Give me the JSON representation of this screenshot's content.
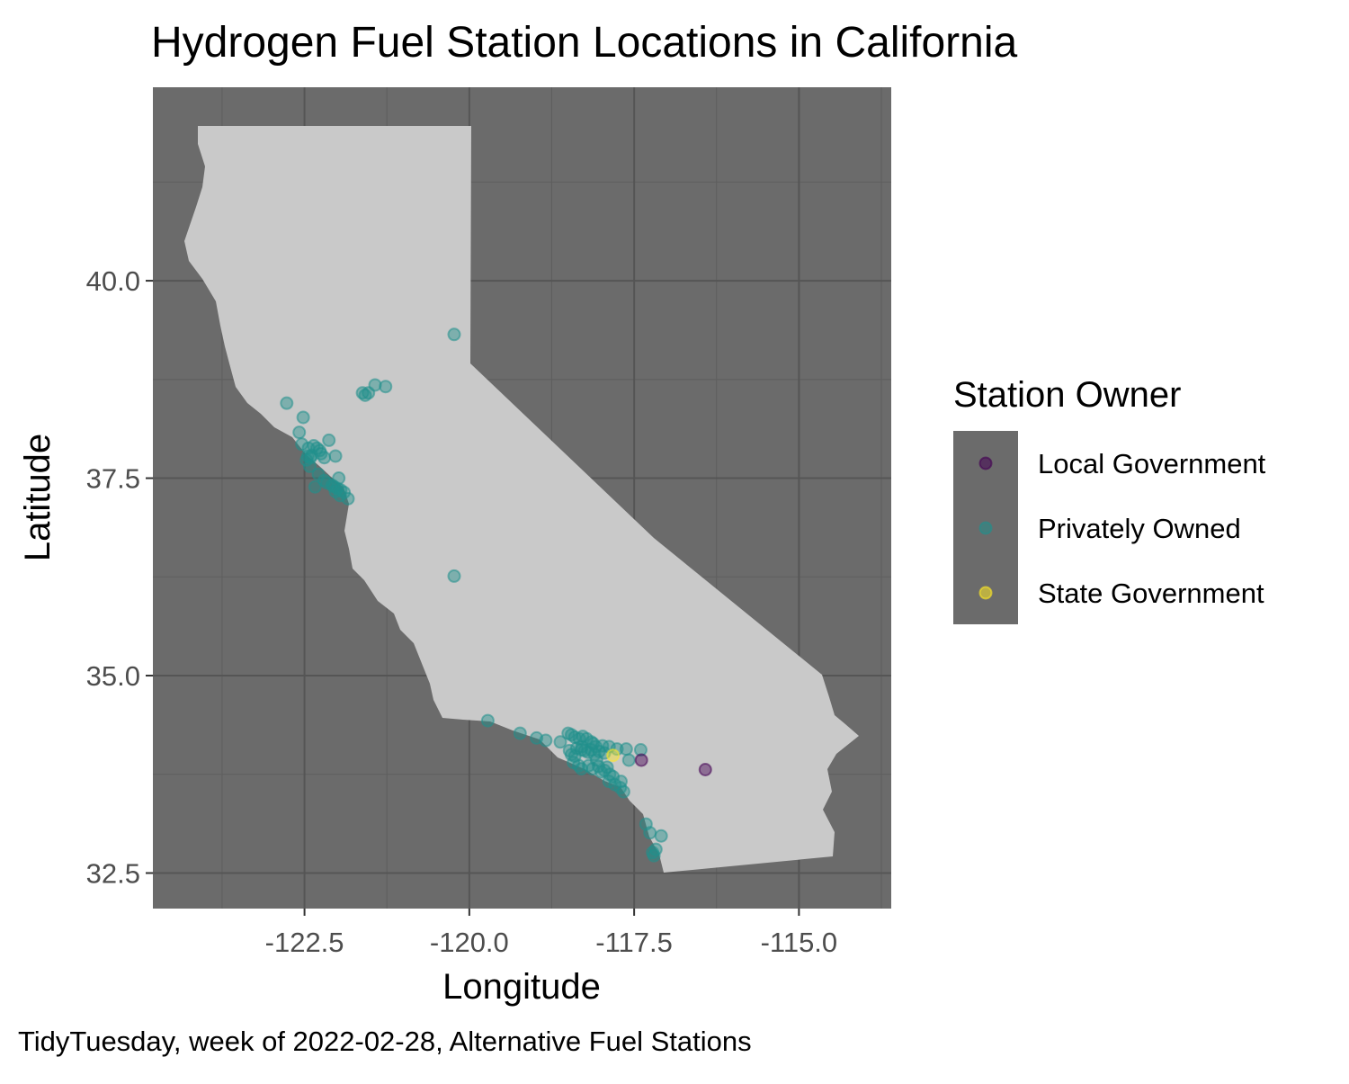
{
  "chart_data": {
    "type": "scatter",
    "title": "Hydrogen Fuel Station Locations in California",
    "xlabel": "Longitude",
    "ylabel": "Latitude",
    "caption": "TidyTuesday, week of 2022-02-28, Alternative Fuel Stations",
    "xlim": [
      -124.8,
      -113.6
    ],
    "ylim": [
      32.05,
      42.45
    ],
    "x_ticks": [
      -122.5,
      -120.0,
      -117.5,
      -115.0
    ],
    "x_tick_labels": [
      "-122.5",
      "-120.0",
      "-117.5",
      "-115.0"
    ],
    "y_ticks": [
      32.5,
      35.0,
      37.5,
      40.0
    ],
    "y_tick_labels": [
      "32.5",
      "35.0",
      "37.5",
      "40.0"
    ],
    "grid": true,
    "legend": {
      "title": "Station Owner",
      "placement": "right",
      "entries": [
        "Local Government",
        "Privately Owned",
        "State Government"
      ]
    },
    "colors": {
      "panel_background": "#6b6b6b",
      "grid_major": "#555555",
      "grid_minor": "#5e5e5e",
      "land_fill": "#c9c9c9",
      "Local Government": "#440154",
      "Privately Owned": "#21908c",
      "State Government": "#fde725"
    },
    "series": [
      {
        "name": "Privately Owned",
        "points": [
          [
            -120.23,
            39.32
          ],
          [
            -122.77,
            38.45
          ],
          [
            -121.27,
            38.66
          ],
          [
            -121.43,
            38.68
          ],
          [
            -121.53,
            38.58
          ],
          [
            -121.62,
            38.58
          ],
          [
            -121.58,
            38.55
          ],
          [
            -122.52,
            38.27
          ],
          [
            -122.58,
            38.08
          ],
          [
            -122.54,
            37.93
          ],
          [
            -122.44,
            37.88
          ],
          [
            -122.36,
            37.91
          ],
          [
            -122.31,
            37.88
          ],
          [
            -122.27,
            37.85
          ],
          [
            -122.45,
            37.78
          ],
          [
            -122.41,
            37.76
          ],
          [
            -122.39,
            37.79
          ],
          [
            -122.47,
            37.73
          ],
          [
            -122.25,
            37.81
          ],
          [
            -122.2,
            37.76
          ],
          [
            -122.13,
            37.98
          ],
          [
            -122.03,
            37.78
          ],
          [
            -122.42,
            37.65
          ],
          [
            -122.29,
            37.55
          ],
          [
            -122.34,
            37.39
          ],
          [
            -122.2,
            37.47
          ],
          [
            -122.16,
            37.44
          ],
          [
            -122.08,
            37.41
          ],
          [
            -122.05,
            37.39
          ],
          [
            -122.0,
            37.37
          ],
          [
            -122.03,
            37.33
          ],
          [
            -121.95,
            37.35
          ],
          [
            -121.9,
            37.32
          ],
          [
            -121.84,
            37.24
          ],
          [
            -121.98,
            37.5
          ],
          [
            -121.96,
            37.28
          ],
          [
            -120.23,
            36.26
          ],
          [
            -119.72,
            34.43
          ],
          [
            -119.23,
            34.27
          ],
          [
            -118.98,
            34.21
          ],
          [
            -118.84,
            34.18
          ],
          [
            -118.62,
            34.16
          ],
          [
            -118.5,
            34.27
          ],
          [
            -118.45,
            34.25
          ],
          [
            -118.4,
            34.22
          ],
          [
            -118.33,
            34.2
          ],
          [
            -118.28,
            34.23
          ],
          [
            -118.22,
            34.2
          ],
          [
            -118.15,
            34.16
          ],
          [
            -118.12,
            34.14
          ],
          [
            -118.08,
            34.1
          ],
          [
            -117.98,
            34.11
          ],
          [
            -117.88,
            34.1
          ],
          [
            -117.76,
            34.07
          ],
          [
            -117.62,
            34.07
          ],
          [
            -117.4,
            34.06
          ],
          [
            -118.48,
            34.05
          ],
          [
            -118.45,
            34.0
          ],
          [
            -118.4,
            33.98
          ],
          [
            -118.37,
            34.08
          ],
          [
            -118.3,
            34.06
          ],
          [
            -118.25,
            34.05
          ],
          [
            -118.29,
            34.1
          ],
          [
            -118.2,
            34.03
          ],
          [
            -118.15,
            34.06
          ],
          [
            -118.1,
            34.0
          ],
          [
            -118.42,
            33.9
          ],
          [
            -118.34,
            33.86
          ],
          [
            -118.3,
            33.82
          ],
          [
            -118.19,
            33.86
          ],
          [
            -118.13,
            33.82
          ],
          [
            -118.07,
            33.93
          ],
          [
            -118.04,
            33.85
          ],
          [
            -118.0,
            33.78
          ],
          [
            -117.95,
            33.8
          ],
          [
            -117.91,
            33.84
          ],
          [
            -117.87,
            33.75
          ],
          [
            -117.82,
            33.72
          ],
          [
            -117.88,
            33.66
          ],
          [
            -117.79,
            33.62
          ],
          [
            -117.71,
            33.58
          ],
          [
            -117.7,
            33.66
          ],
          [
            -117.66,
            33.53
          ],
          [
            -117.58,
            33.93
          ],
          [
            -117.95,
            34.02
          ],
          [
            -118.03,
            34.04
          ],
          [
            -117.32,
            33.12
          ],
          [
            -117.26,
            33.01
          ],
          [
            -117.17,
            32.8
          ],
          [
            -117.22,
            32.76
          ],
          [
            -117.09,
            32.97
          ],
          [
            -117.2,
            32.72
          ]
        ]
      },
      {
        "name": "Local Government",
        "points": [
          [
            -117.39,
            33.93
          ],
          [
            -116.42,
            33.81
          ]
        ]
      },
      {
        "name": "State Government",
        "points": [
          [
            -117.82,
            33.99
          ]
        ]
      }
    ]
  }
}
